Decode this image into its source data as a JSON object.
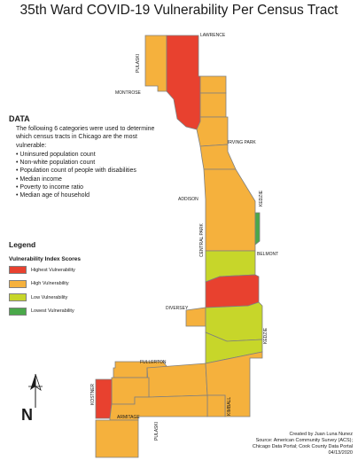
{
  "title": "35th Ward COVID-19 Vulnerability Per Census Tract",
  "colors": {
    "highest": "#e8412f",
    "high": "#f5b13d",
    "low": "#c7d62a",
    "lowest": "#4aa84a",
    "tract_border": "#7f7f7f"
  },
  "streets": {
    "lawrence": "LAWRENCE",
    "pulaski_north": "PULASKI",
    "montrose": "MONTROSE",
    "irving_park": "IRVING PARK",
    "addison": "ADDISON",
    "kedzie_north": "KEDZIE",
    "central_park": "CENTRAL PARK",
    "belmont": "BELMONT",
    "diversey": "DIVERSEY",
    "kedzie_south": "KEDZIE",
    "fullerton": "FULLERTON",
    "kostner": "KOSTNER",
    "kimball": "KIMBALL",
    "armitage": "ARMITAGE",
    "pulaski_south": "PULASKI"
  },
  "data_section": {
    "heading": "DATA",
    "intro": "The following 6 categories were used to determine which census tracts in Chicago are the most vulnerable:",
    "items": [
      "Uninsured population count",
      "Non-white population count",
      "Population count of people with disabilities",
      "Median income",
      "Poverty to income ratio",
      "Median age of household"
    ]
  },
  "legend": {
    "heading": "Legend",
    "subtitle": "Vulnerability Index Scores",
    "items": [
      {
        "label": "Highest Vulnerability",
        "level": "highest"
      },
      {
        "label": "High Vulnerability",
        "level": "high"
      },
      {
        "label": "Low Vulnerability",
        "level": "low"
      },
      {
        "label": "Lowest Vulnerability",
        "level": "lowest"
      }
    ]
  },
  "north_arrow": {
    "label": "N",
    "icon": "north-arrow-icon"
  },
  "credits": [
    "Created by Juan Luna Nunez",
    "Source: American Community Survey (ACS);",
    "Chicago Data Portal; Cook County Data Portal",
    "04/13/2020"
  ],
  "tracts": [
    {
      "id": "t01",
      "level": "high"
    },
    {
      "id": "t02",
      "level": "highest"
    },
    {
      "id": "t03",
      "level": "high"
    },
    {
      "id": "t04",
      "level": "high"
    },
    {
      "id": "t05",
      "level": "high"
    },
    {
      "id": "t06",
      "level": "high"
    },
    {
      "id": "t07",
      "level": "high"
    },
    {
      "id": "t08",
      "level": "lowest"
    },
    {
      "id": "t09",
      "level": "low"
    },
    {
      "id": "t10",
      "level": "highest"
    },
    {
      "id": "t11",
      "level": "high"
    },
    {
      "id": "t12",
      "level": "low"
    },
    {
      "id": "t13",
      "level": "low"
    },
    {
      "id": "t14",
      "level": "high"
    },
    {
      "id": "t15",
      "level": "high"
    },
    {
      "id": "t16",
      "level": "high"
    },
    {
      "id": "t17",
      "level": "high"
    },
    {
      "id": "t18",
      "level": "high"
    },
    {
      "id": "t19",
      "level": "highest"
    },
    {
      "id": "t20",
      "level": "high"
    },
    {
      "id": "t21",
      "level": "high"
    }
  ]
}
